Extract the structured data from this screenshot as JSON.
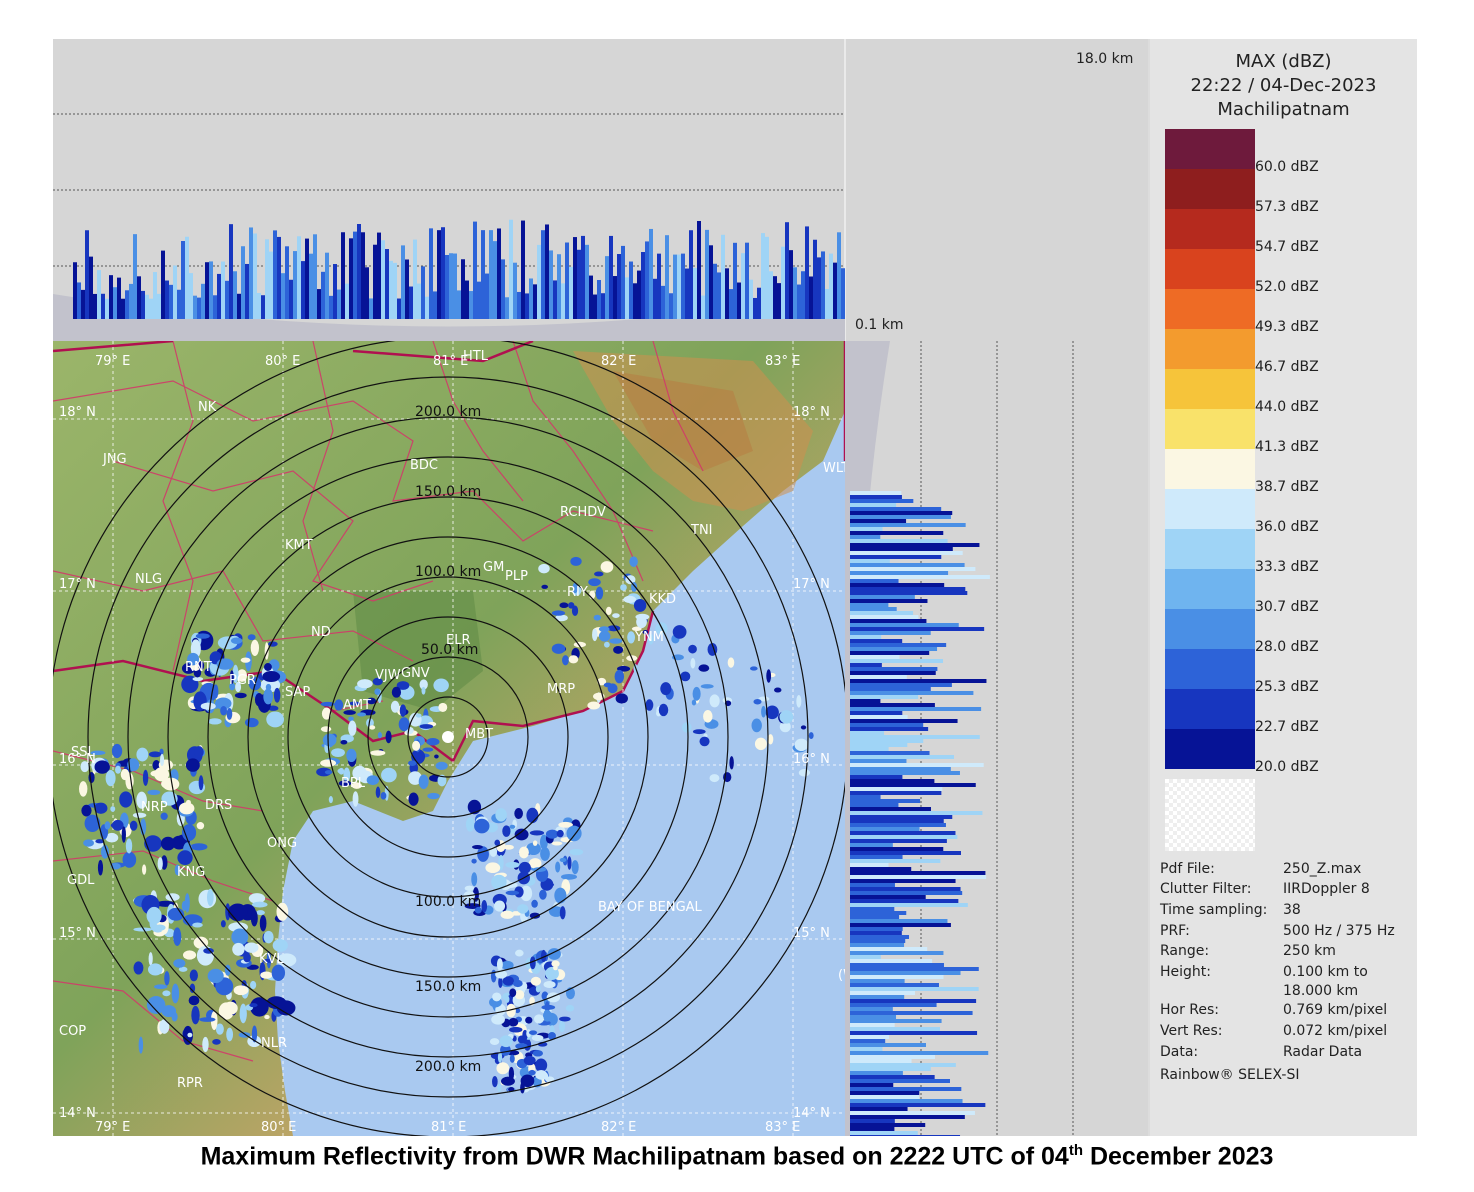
{
  "legend": {
    "product": "MAX (dBZ)",
    "datetime": "22:22 / 04-Dec-2023",
    "station": "Machilipatnam",
    "scale": [
      {
        "label": "60.0 dBZ",
        "color": "#6e1a3c"
      },
      {
        "label": "57.3 dBZ",
        "color": "#8e1e1e"
      },
      {
        "label": "54.7 dBZ",
        "color": "#b52a1e"
      },
      {
        "label": "52.0 dBZ",
        "color": "#d9431e"
      },
      {
        "label": "49.3 dBZ",
        "color": "#ee6b25"
      },
      {
        "label": "46.7 dBZ",
        "color": "#f39b2e"
      },
      {
        "label": "44.0 dBZ",
        "color": "#f6c43a"
      },
      {
        "label": "41.3 dBZ",
        "color": "#f9e26a"
      },
      {
        "label": "38.7 dBZ",
        "color": "#fbf7e3"
      },
      {
        "label": "36.0 dBZ",
        "color": "#cfeafb"
      },
      {
        "label": "33.3 dBZ",
        "color": "#9fd4f6"
      },
      {
        "label": "30.7 dBZ",
        "color": "#6fb4ef"
      },
      {
        "label": "28.0 dBZ",
        "color": "#4a8fe5"
      },
      {
        "label": "25.3 dBZ",
        "color": "#2d63d8"
      },
      {
        "label": "22.7 dBZ",
        "color": "#1736bf"
      },
      {
        "label": "20.0 dBZ",
        "color": "#061396"
      }
    ]
  },
  "metadata": [
    {
      "key": "Pdf File:",
      "value": "250_Z.max"
    },
    {
      "key": "Clutter Filter:",
      "value": "IIRDoppler 8"
    },
    {
      "key": "Time sampling:",
      "value": "38"
    },
    {
      "key": "PRF:",
      "value": "500 Hz / 375 Hz"
    },
    {
      "key": "Range:",
      "value": "250 km"
    },
    {
      "key": "Height:",
      "value": "0.100 km to"
    },
    {
      "key": "",
      "value": "18.000 km"
    },
    {
      "key": "Hor Res:",
      "value": "0.769 km/pixel"
    },
    {
      "key": "Vert Res:",
      "value": "0.072 km/pixel"
    },
    {
      "key": "Data:",
      "value": "Radar Data"
    }
  ],
  "credit": "Rainbow® SELEX-SI",
  "height_labels": {
    "top": "18.0 km",
    "bottom": "0.1 km"
  },
  "range_rings": [
    "50.0 km",
    "100.0 km",
    "150.0 km",
    "200.0 km"
  ],
  "longitudes": [
    "79° E",
    "80° E",
    "81° E",
    "82° E",
    "83° E"
  ],
  "latitudes": [
    "18° N",
    "17° N",
    "16° N",
    "15° N",
    "14° N"
  ],
  "places": [
    "HTL",
    "NK",
    "JNG",
    "BDC",
    "RCHDV",
    "KMT",
    "TNI",
    "NLG",
    "GM",
    "PLP",
    "RIY",
    "KKD",
    "ND",
    "YNM",
    "ELR",
    "RNT",
    "PGR",
    "SAP",
    "VJW",
    "GNV",
    "MRP",
    "AMT",
    "MBT",
    "BPL",
    "SSL",
    "NRP",
    "DRS",
    "ONG",
    "KNG",
    "GDL",
    "KVL",
    "COP",
    "NLR",
    "RPR",
    "WLT",
    "BAY OF BENGAL",
    "(WEST-CENTRAL)"
  ],
  "caption": {
    "main": "Maximum Reflectivity from DWR Machilipatnam based on 2222 UTC of 04",
    "sup": "th",
    "end": " December 2023"
  }
}
